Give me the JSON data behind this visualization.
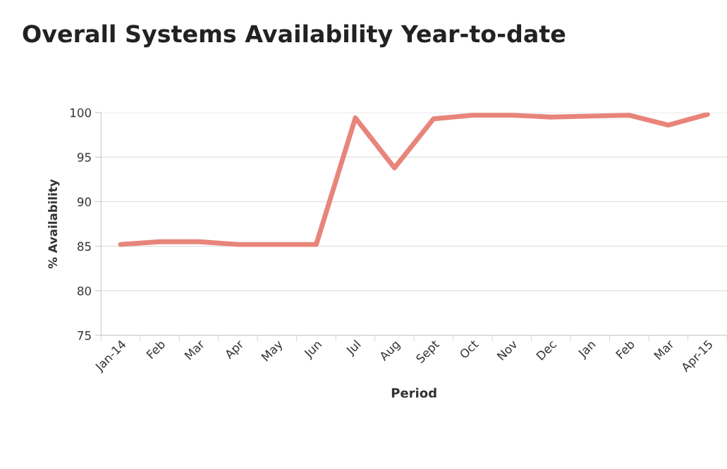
{
  "chart_data": {
    "type": "line",
    "title": "Overall Systems Availability Year-to-date",
    "xlabel": "Period",
    "ylabel": "% Availability",
    "categories": [
      "Jan-14",
      "Feb",
      "Mar",
      "Apr",
      "May",
      "Jun",
      "Jul",
      "Aug",
      "Sept",
      "Oct",
      "Nov",
      "Dec",
      "Jan",
      "Feb",
      "Mar",
      "Apr-15"
    ],
    "series": [
      {
        "color": "#e8857a",
        "values": [
          85.2,
          85.5,
          85.5,
          85.2,
          85.2,
          85.2,
          99.4,
          93.8,
          99.3,
          99.7,
          99.7,
          99.5,
          99.6,
          99.7,
          98.6,
          99.8
        ]
      }
    ],
    "ylim": [
      75,
      100
    ],
    "yticks": [
      75,
      80,
      85,
      90,
      95,
      100
    ],
    "grid": "y",
    "marker": "none",
    "line_style": "solid"
  }
}
